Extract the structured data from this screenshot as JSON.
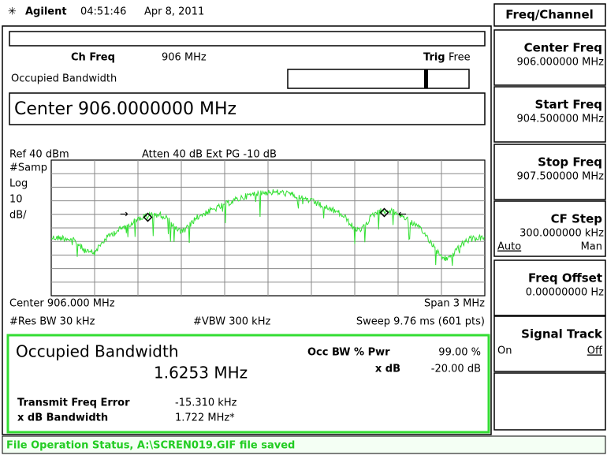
{
  "header": {
    "brand": "Agilent",
    "time": "04:51:46",
    "date": "Apr 8, 2011"
  },
  "menu_title": "Freq/Channel",
  "softkeys": [
    {
      "label": "Center Freq",
      "value": "906.000000 MHz"
    },
    {
      "label": "Start Freq",
      "value": "904.500000 MHz"
    },
    {
      "label": "Stop Freq",
      "value": "907.500000 MHz"
    },
    {
      "label": "CF Step",
      "value": "300.000000 kHz",
      "options": [
        "Auto",
        "Man"
      ]
    },
    {
      "label": "Freq Offset",
      "value": "0.00000000  Hz"
    },
    {
      "label": "Signal Track",
      "options": [
        "On",
        "Off"
      ]
    }
  ],
  "status_line": {
    "ch_freq_label": "Ch Freq",
    "ch_freq": "906 MHz",
    "trig_label": "Trig",
    "trig": "Free",
    "mode": "Occupied Bandwidth"
  },
  "active_function": "Center 906.0000000 MHz",
  "display": {
    "ref": "Ref 40 dBm",
    "atten": "Atten 40 dB  Ext PG -10 dB",
    "left_labels": [
      "#Samp",
      "Log",
      "10",
      "dB/"
    ],
    "center": "Center 906.000 MHz",
    "span": "Span 3 MHz",
    "rbw": "#Res BW 30 kHz",
    "vbw": "#VBW 300 kHz",
    "sweep": "Sweep 9.76 ms (601 pts)"
  },
  "results": {
    "title": "Occupied Bandwidth",
    "value": "1.6253 MHz",
    "occ_bw_label": "Occ BW % Pwr",
    "occ_bw": "99.00 %",
    "xdb_label": "x dB",
    "xdb": "-20.00 dB",
    "tfe_label": "Transmit Freq Error",
    "tfe": "-15.310 kHz",
    "xdbbw_label": "x dB Bandwidth",
    "xdbbw": "1.722 MHz*"
  },
  "message": "File Operation Status, A:\\SCREN019.GIF file saved"
}
